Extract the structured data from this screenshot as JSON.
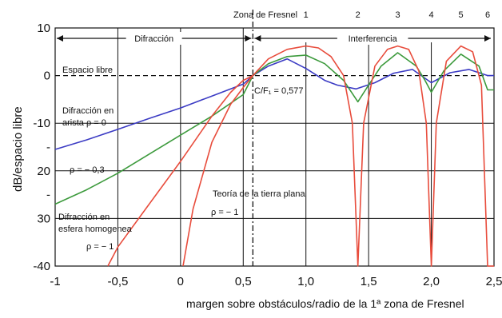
{
  "chart_data": {
    "type": "line",
    "xlabel": "margen sobre obstáculos/radio de la 1ª zona de Fresnel",
    "ylabel": "dB/espacio libre",
    "xlim": [
      -1,
      2.5
    ],
    "ylim": [
      -40,
      10
    ],
    "x_ticks": [
      {
        "value": -1,
        "label": "-1"
      },
      {
        "value": -0.5,
        "label": "-0,5"
      },
      {
        "value": 0,
        "label": "0"
      },
      {
        "value": 0.5,
        "label": "0,5"
      },
      {
        "value": 1.0,
        "label": "1,0"
      },
      {
        "value": 1.5,
        "label": "1,5"
      },
      {
        "value": 2.0,
        "label": "2,0"
      },
      {
        "value": 2.5,
        "label": "2,5"
      }
    ],
    "y_ticks": [
      {
        "value": 10,
        "label": "10"
      },
      {
        "value": 0,
        "label": "0"
      },
      {
        "value": -10,
        "label": "-10"
      },
      {
        "value": -15,
        "label": "-"
      },
      {
        "value": -20,
        "label": "20"
      },
      {
        "value": -25,
        "label": "-"
      },
      {
        "value": -30,
        "label": "30"
      },
      {
        "value": -40,
        "label": "-40"
      }
    ],
    "fresnel_zone_title": "Zona de Fresnel",
    "fresnel_zones": [
      {
        "x": 1.0,
        "label": "1"
      },
      {
        "x": 1.414,
        "label": "2"
      },
      {
        "x": 1.732,
        "label": "3"
      },
      {
        "x": 2.0,
        "label": "4"
      },
      {
        "x": 2.236,
        "label": "5"
      },
      {
        "x": 2.449,
        "label": "6"
      }
    ],
    "regions": [
      {
        "label": "Difracción",
        "x_from": -1,
        "x_to": 0.577
      },
      {
        "label": "Interferencia",
        "x_from": 0.577,
        "x_to": 2.5
      }
    ],
    "reference_lines": [
      {
        "y": 0,
        "label": "Espacio libre",
        "style": "dashed"
      },
      {
        "x": 0.577,
        "label": "C/F₁ = 0,577",
        "style": "dash-dot"
      }
    ],
    "annotations": [
      {
        "lines": [
          "Difracción en",
          "arista  ρ = 0"
        ]
      },
      {
        "lines": [
          "ρ = − 0,3"
        ]
      },
      {
        "lines": [
          "Teoría de la tierra plana",
          "ρ = − 1"
        ]
      },
      {
        "lines": [
          "Difracción en",
          "esfera homogenea",
          "ρ = − 1"
        ]
      }
    ],
    "series": [
      {
        "color": "#3b3bc4",
        "x": [
          -1,
          -0.75,
          -0.5,
          -0.25,
          0,
          0.25,
          0.5,
          0.577,
          0.7,
          0.85,
          1.0,
          1.15,
          1.25,
          1.4,
          1.55,
          1.7,
          1.85,
          2.0,
          2.15,
          2.3,
          2.45,
          2.5
        ],
        "y": [
          -15.5,
          -13.5,
          -11.3,
          -9,
          -6.8,
          -4.3,
          -1.8,
          0,
          2,
          3.5,
          1.5,
          -1,
          -2,
          -2.8,
          -1.5,
          0.5,
          1.3,
          -1.5,
          0.6,
          1.3,
          0,
          0
        ]
      },
      {
        "color": "#3c9a3c",
        "x": [
          -1,
          -0.75,
          -0.5,
          -0.25,
          0,
          0.25,
          0.5,
          0.577,
          0.7,
          0.85,
          1.0,
          1.15,
          1.3,
          1.414,
          1.5,
          1.6,
          1.732,
          1.88,
          1.95,
          2.0,
          2.1,
          2.236,
          2.38,
          2.449,
          2.5
        ],
        "y": [
          -27,
          -24,
          -20.5,
          -16.5,
          -12.5,
          -8.5,
          -4,
          0,
          2.5,
          4,
          4.3,
          2.5,
          -1,
          -5.5,
          -2,
          2,
          4.8,
          2,
          -1,
          -3.5,
          1,
          4.5,
          2,
          -3,
          -3
        ]
      },
      {
        "color": "#e84c3c",
        "x": [
          -0.58,
          -0.5,
          -0.25,
          0,
          0.25,
          0.4,
          0.5,
          0.577,
          0.7,
          0.85,
          1.0,
          1.1,
          1.2,
          1.3,
          1.37,
          1.414,
          1.46,
          1.55,
          1.65,
          1.732,
          1.82,
          1.9,
          1.96,
          2.0,
          2.04,
          2.12,
          2.236,
          2.33,
          2.4,
          2.449,
          2.5
        ],
        "y": [
          -40,
          -36,
          -27,
          -18,
          -8.5,
          -3.5,
          -1,
          0,
          3.5,
          5.5,
          6.2,
          5.8,
          4,
          0,
          -10,
          -40,
          -10,
          2,
          5.5,
          6.2,
          5.5,
          1,
          -10,
          -40,
          -10,
          3,
          6.2,
          5,
          -2,
          -40,
          -40
        ]
      },
      {
        "color": "#e84c3c",
        "x": [
          0.02,
          0.1,
          0.25,
          0.4,
          0.5,
          0.577
        ],
        "y": [
          -40,
          -28,
          -14,
          -6,
          -2.5,
          0
        ]
      }
    ]
  }
}
